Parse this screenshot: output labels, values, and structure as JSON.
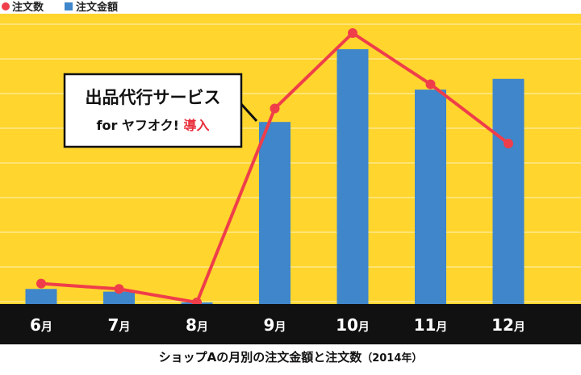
{
  "colors": {
    "background": "#FFD52E",
    "gridline": "#FFE98C",
    "bar": "#3F86CB",
    "line": "#EF3E4A",
    "axis_band": "#111111",
    "callout_accent": "#E8303C"
  },
  "legend": {
    "line_label": "注文数",
    "bar_label": "注文金額"
  },
  "callout": {
    "title": "出品代行サービス",
    "sub_prefix": "for ヤフオク! ",
    "sub_accent": "導入"
  },
  "caption": {
    "main": "ショップAの月別の注文金額と注文数",
    "year": "（2014年）"
  },
  "chart_data": {
    "type": "bar",
    "categories": [
      "6",
      "7",
      "8",
      "9",
      "10",
      "11",
      "12"
    ],
    "category_unit": "月",
    "ylim": [
      0,
      100
    ],
    "grid": true,
    "legend_position": "top-left",
    "series": [
      {
        "kind": "bar",
        "legend_ref": "bar_label",
        "values": [
          5,
          4,
          0,
          67,
          94,
          79,
          83
        ]
      },
      {
        "kind": "line",
        "legend_ref": "line_label",
        "values": [
          7,
          5,
          0,
          72,
          100,
          81,
          59
        ]
      }
    ],
    "annotation": {
      "category": "9"
    }
  }
}
